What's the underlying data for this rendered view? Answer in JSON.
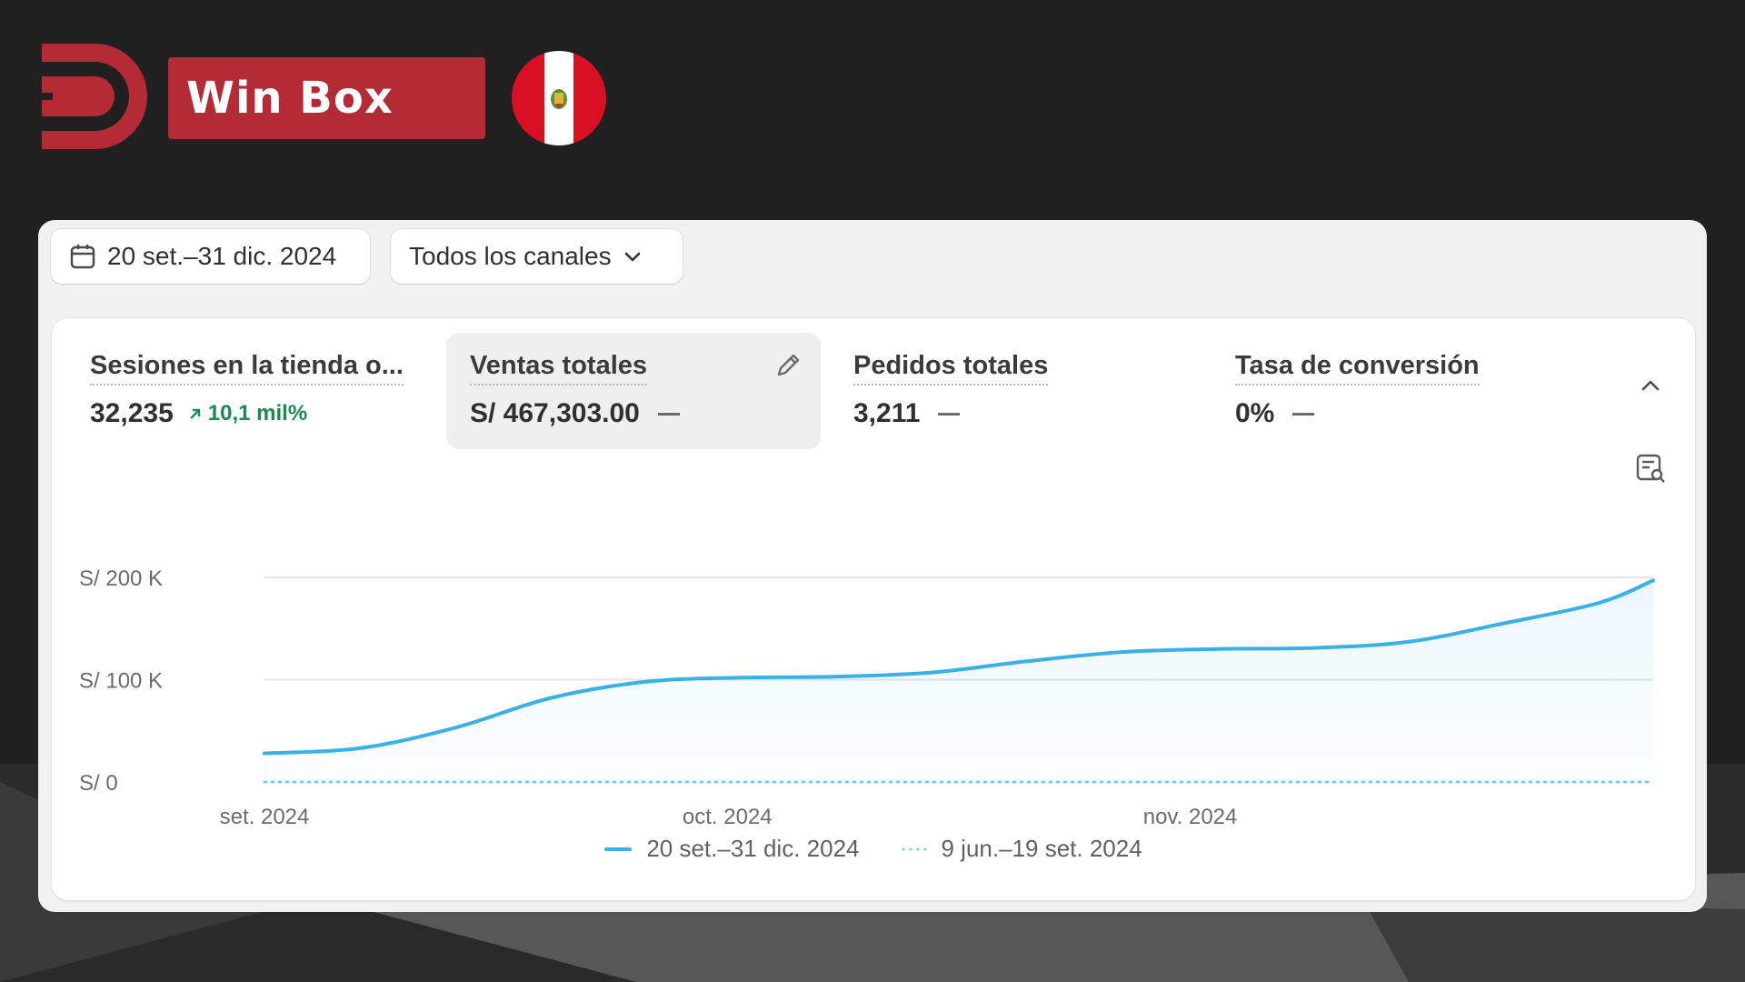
{
  "brand": {
    "name": "Win Box"
  },
  "filters": {
    "date_range": "20 set.–31 dic. 2024",
    "channel": "Todos los canales"
  },
  "metrics": [
    {
      "title": "Sesiones en la tienda o...",
      "value": "32,235",
      "delta": "10,1 mil%"
    },
    {
      "title": "Ventas totales",
      "value": "S/ 467,303.00"
    },
    {
      "title": "Pedidos totales",
      "value": "3,211"
    },
    {
      "title": "Tasa de conversión",
      "value": "0%"
    }
  ],
  "colors": {
    "brand_red": "#b52b35",
    "series_current": "#3ab0e6",
    "series_previous": "#7fcdf1",
    "positive": "#1c8a4f"
  },
  "icons": [
    "calendar-icon",
    "chevron-down-icon",
    "arrow-up-right-icon",
    "pencil-icon",
    "chevron-up-icon",
    "chart-search-icon"
  ],
  "chart_data": {
    "type": "area",
    "y_tick_labels": [
      "S/ 0",
      "S/ 100 K",
      "S/ 200 K"
    ],
    "x_tick_labels": [
      "set. 2024",
      "oct. 2024",
      "nov. 2024"
    ],
    "ylim": [
      0,
      200000
    ],
    "grid": true,
    "legend_position": "bottom-center",
    "series": [
      {
        "name": "20 set.–31 dic. 2024",
        "style": "solid",
        "x": [
          "2024-09-20",
          "2024-09-27",
          "2024-10-04",
          "2024-10-11",
          "2024-10-18",
          "2024-10-25",
          "2024-11-01",
          "2024-11-08",
          "2024-11-15",
          "2024-11-22",
          "2024-11-29",
          "2024-12-06",
          "2024-12-13",
          "2024-12-20",
          "2024-12-27",
          "2024-12-31"
        ],
        "values": [
          28000,
          33000,
          53000,
          82000,
          98000,
          102000,
          103000,
          107000,
          118000,
          127000,
          130000,
          131000,
          137000,
          155000,
          175000,
          197000
        ]
      },
      {
        "name": "9 jun.–19 set. 2024",
        "style": "dotted",
        "x": [
          "2024-09-20",
          "2024-12-31"
        ],
        "values": [
          0,
          0
        ]
      }
    ]
  }
}
